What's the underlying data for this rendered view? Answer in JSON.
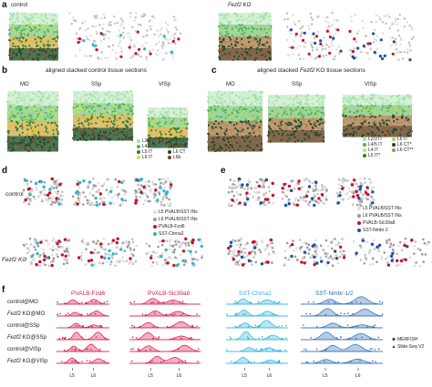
{
  "panel_a": {
    "letter": "a",
    "control_label": "control",
    "ko_label_gene": "Fezf2",
    "ko_label_suffix": " KO"
  },
  "panel_b": {
    "letter": "b",
    "title": "aligned stacked control tissue sections",
    "regions": [
      "MO",
      "SSp",
      "VISp"
    ],
    "legend": [
      {
        "label": "L2/3 IT",
        "color": "#9fe0a8"
      },
      {
        "label": "L4/5 IT",
        "color": "#4fb35a"
      },
      {
        "label": "L5 IT",
        "color": "#2f7d3a"
      },
      {
        "label": "L6 IT",
        "color": "#c8e35a"
      },
      {
        "label": "L5 NP",
        "color": "#e0c040"
      },
      {
        "label": "L5 PT",
        "color": "#d89a2a"
      },
      {
        "label": "L6 CT",
        "color": "#1d4a2a"
      },
      {
        "label": "L6b",
        "color": "#6e4a2a"
      }
    ]
  },
  "panel_c": {
    "letter": "c",
    "title_pre": "aligned stacked ",
    "title_gene": "Fezf2",
    "title_post": " KO tissue sections",
    "regions": [
      "MO",
      "SSp",
      "VISp"
    ],
    "legend": [
      {
        "label": "L2/3 IT",
        "color": "#9fe0a8"
      },
      {
        "label": "L4/5 IT",
        "color": "#4fb35a"
      },
      {
        "label": "L4 IT",
        "color": "#c8e35a"
      },
      {
        "label": "L5 IT*",
        "color": "#2f7d3a"
      },
      {
        "label": "L6 IT",
        "color": "#a7d06a"
      },
      {
        "label": "L6 CT*",
        "color": "#1d4a2a"
      },
      {
        "label": "L6 CT**",
        "color": "#b4885a"
      }
    ]
  },
  "panel_d": {
    "letter": "d",
    "row_labels": [
      "control",
      "Fezf2 KO"
    ],
    "legend": [
      {
        "label": "L5 PVALB/SST INs",
        "color": "#dddddd"
      },
      {
        "label": "L6 PVALB/SST INs",
        "color": "#9a9a9a"
      },
      {
        "label": "PVALB-Fzd6",
        "color": "#c8102e"
      },
      {
        "label": "SST-Chrna2",
        "color": "#29b6d8"
      }
    ]
  },
  "panel_e": {
    "letter": "e",
    "legend": [
      {
        "label": "L5 PVALB/SST INs",
        "color": "#dddddd"
      },
      {
        "label": "L6 PVALB/SST INs",
        "color": "#9a9a9a"
      },
      {
        "label": "PVALB-Slc39a8",
        "color": "#c8102e"
      },
      {
        "label": "SST-Nmbr-2",
        "color": "#1f4fa8"
      }
    ]
  },
  "panel_f": {
    "letter": "f",
    "columns": [
      {
        "title": "PVALB-Fzd6",
        "color": "#d81b4a"
      },
      {
        "title": "PVALB-Slc39a8",
        "color": "#d81b4a"
      },
      {
        "title": "SST-Chrna2",
        "color": "#29b6d8"
      },
      {
        "title": "SST-Nmbr-1/2",
        "color": "#2f6db5"
      }
    ],
    "rows": [
      {
        "pre": "control@",
        "region": "MO",
        "ko": false
      },
      {
        "pre": "Fezf2",
        "post": " KO@",
        "region": "MO",
        "ko": true
      },
      {
        "pre": "control@",
        "region": "SSp",
        "ko": false
      },
      {
        "pre": "Fezf2",
        "post": " KO@",
        "region": "SSp",
        "ko": true
      },
      {
        "pre": "control@",
        "region": "VISp",
        "ko": false
      },
      {
        "pre": "Fezf2",
        "post": " KO@",
        "region": "VISp",
        "ko": true
      }
    ],
    "x_ticks": [
      "L5",
      "L6"
    ],
    "legend": [
      {
        "label": "MERFISH",
        "marker": "circle"
      },
      {
        "label": "Slide-Seq V2",
        "marker": "triangle"
      }
    ]
  }
}
